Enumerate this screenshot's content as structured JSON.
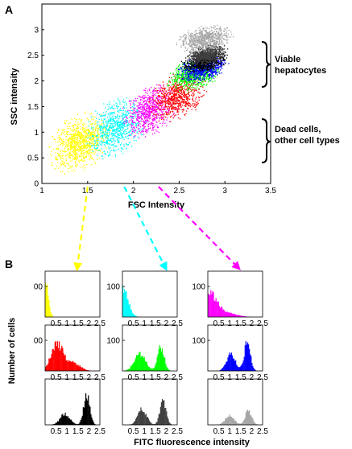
{
  "panels": {
    "a": "A",
    "b": "B"
  },
  "chart_data": [
    {
      "type": "scatter",
      "panel": "A",
      "xlabel": "FSC Intensity",
      "ylabel": "SSC intensity",
      "xlim": [
        1,
        3.5
      ],
      "ylim": [
        0,
        3.5
      ],
      "xticks": [
        "1",
        "1.5",
        "2",
        "2.5",
        "3",
        "3.5"
      ],
      "yticks": [
        "0",
        "0.5",
        "1",
        "1.5",
        "2",
        "2.5",
        "3"
      ],
      "gates": [
        {
          "color": "#ffff00",
          "x_range": [
            1.1,
            1.7
          ],
          "y_range": [
            0.3,
            1.3
          ]
        },
        {
          "color": "#00ffff",
          "x_range": [
            1.5,
            2.1
          ],
          "y_range": [
            0.6,
            1.6
          ]
        },
        {
          "color": "#ff00ff",
          "x_range": [
            1.9,
            2.45
          ],
          "y_range": [
            1.0,
            1.85
          ]
        },
        {
          "color": "#ff0000",
          "x_range": [
            2.2,
            2.75
          ],
          "y_range": [
            1.3,
            2.1
          ]
        },
        {
          "color": "#00ff00",
          "x_range": [
            2.4,
            2.9
          ],
          "y_range": [
            1.85,
            2.4
          ]
        },
        {
          "color": "#0000ff",
          "x_range": [
            2.5,
            3.0
          ],
          "y_range": [
            2.0,
            2.5
          ]
        },
        {
          "color": "#000000",
          "x_range": [
            2.55,
            3.0
          ],
          "y_range": [
            2.2,
            2.6
          ]
        },
        {
          "color": "#404040",
          "x_range": [
            2.6,
            3.0
          ],
          "y_range": [
            2.35,
            2.7
          ]
        },
        {
          "color": "#a6a6a6",
          "x_range": [
            2.5,
            3.05
          ],
          "y_range": [
            2.6,
            3.05
          ]
        }
      ],
      "annotations": [
        {
          "text": [
            "Viable",
            "hepatocytes"
          ],
          "y_range": [
            2.1,
            3.0
          ]
        },
        {
          "text": [
            "Dead cells,",
            "other cell types"
          ],
          "y_range": [
            0.6,
            1.65
          ]
        }
      ]
    },
    {
      "type": "histogram_grid",
      "panel": "B",
      "xlabel": "FITC fluorescence intensity",
      "ylabel": "Number of cells",
      "xlim": [
        0,
        2.5
      ],
      "xticks": [
        "0.5",
        "1",
        "1.5",
        "2",
        "2.5"
      ],
      "ylim": [
        0,
        150
      ],
      "ytick_labels": [
        "00",
        "100",
        "100",
        "00",
        "100",
        "100",
        "",
        "",
        ""
      ],
      "histograms": [
        {
          "color": "#ffff00",
          "peaks": [
            {
              "mu": 0.03,
              "sd": 0.12,
              "h": 110
            }
          ]
        },
        {
          "color": "#00ffff",
          "peaks": [
            {
              "mu": 0.05,
              "sd": 0.22,
              "h": 90
            }
          ]
        },
        {
          "color": "#ff00ff",
          "peaks": [
            {
              "mu": 0.1,
              "sd": 0.35,
              "h": 75
            },
            {
              "mu": 1.0,
              "sd": 0.4,
              "h": 10
            }
          ]
        },
        {
          "color": "#ff0000",
          "peaks": [
            {
              "mu": 0.55,
              "sd": 0.28,
              "h": 85
            },
            {
              "mu": 1.3,
              "sd": 0.3,
              "h": 25
            }
          ]
        },
        {
          "color": "#00ff00",
          "peaks": [
            {
              "mu": 0.8,
              "sd": 0.25,
              "h": 55
            },
            {
              "mu": 1.75,
              "sd": 0.15,
              "h": 80
            }
          ]
        },
        {
          "color": "#0000ff",
          "peaks": [
            {
              "mu": 1.05,
              "sd": 0.2,
              "h": 55
            },
            {
              "mu": 1.8,
              "sd": 0.14,
              "h": 90
            }
          ]
        },
        {
          "color": "#000000",
          "peaks": [
            {
              "mu": 0.9,
              "sd": 0.22,
              "h": 35
            },
            {
              "mu": 1.9,
              "sd": 0.14,
              "h": 95
            }
          ]
        },
        {
          "color": "#404040",
          "peaks": [
            {
              "mu": 0.9,
              "sd": 0.2,
              "h": 50
            },
            {
              "mu": 1.85,
              "sd": 0.14,
              "h": 75
            }
          ]
        },
        {
          "color": "#a6a6a6",
          "peaks": [
            {
              "mu": 1.0,
              "sd": 0.2,
              "h": 30
            },
            {
              "mu": 1.85,
              "sd": 0.15,
              "h": 45
            }
          ]
        }
      ],
      "gate_links": [
        {
          "color": "#ffff00",
          "gate": 0,
          "histogram": 0
        },
        {
          "color": "#00ffff",
          "gate": 1,
          "histogram": 1
        },
        {
          "color": "#ff00ff",
          "gate": 2,
          "histogram": 2
        }
      ]
    }
  ]
}
